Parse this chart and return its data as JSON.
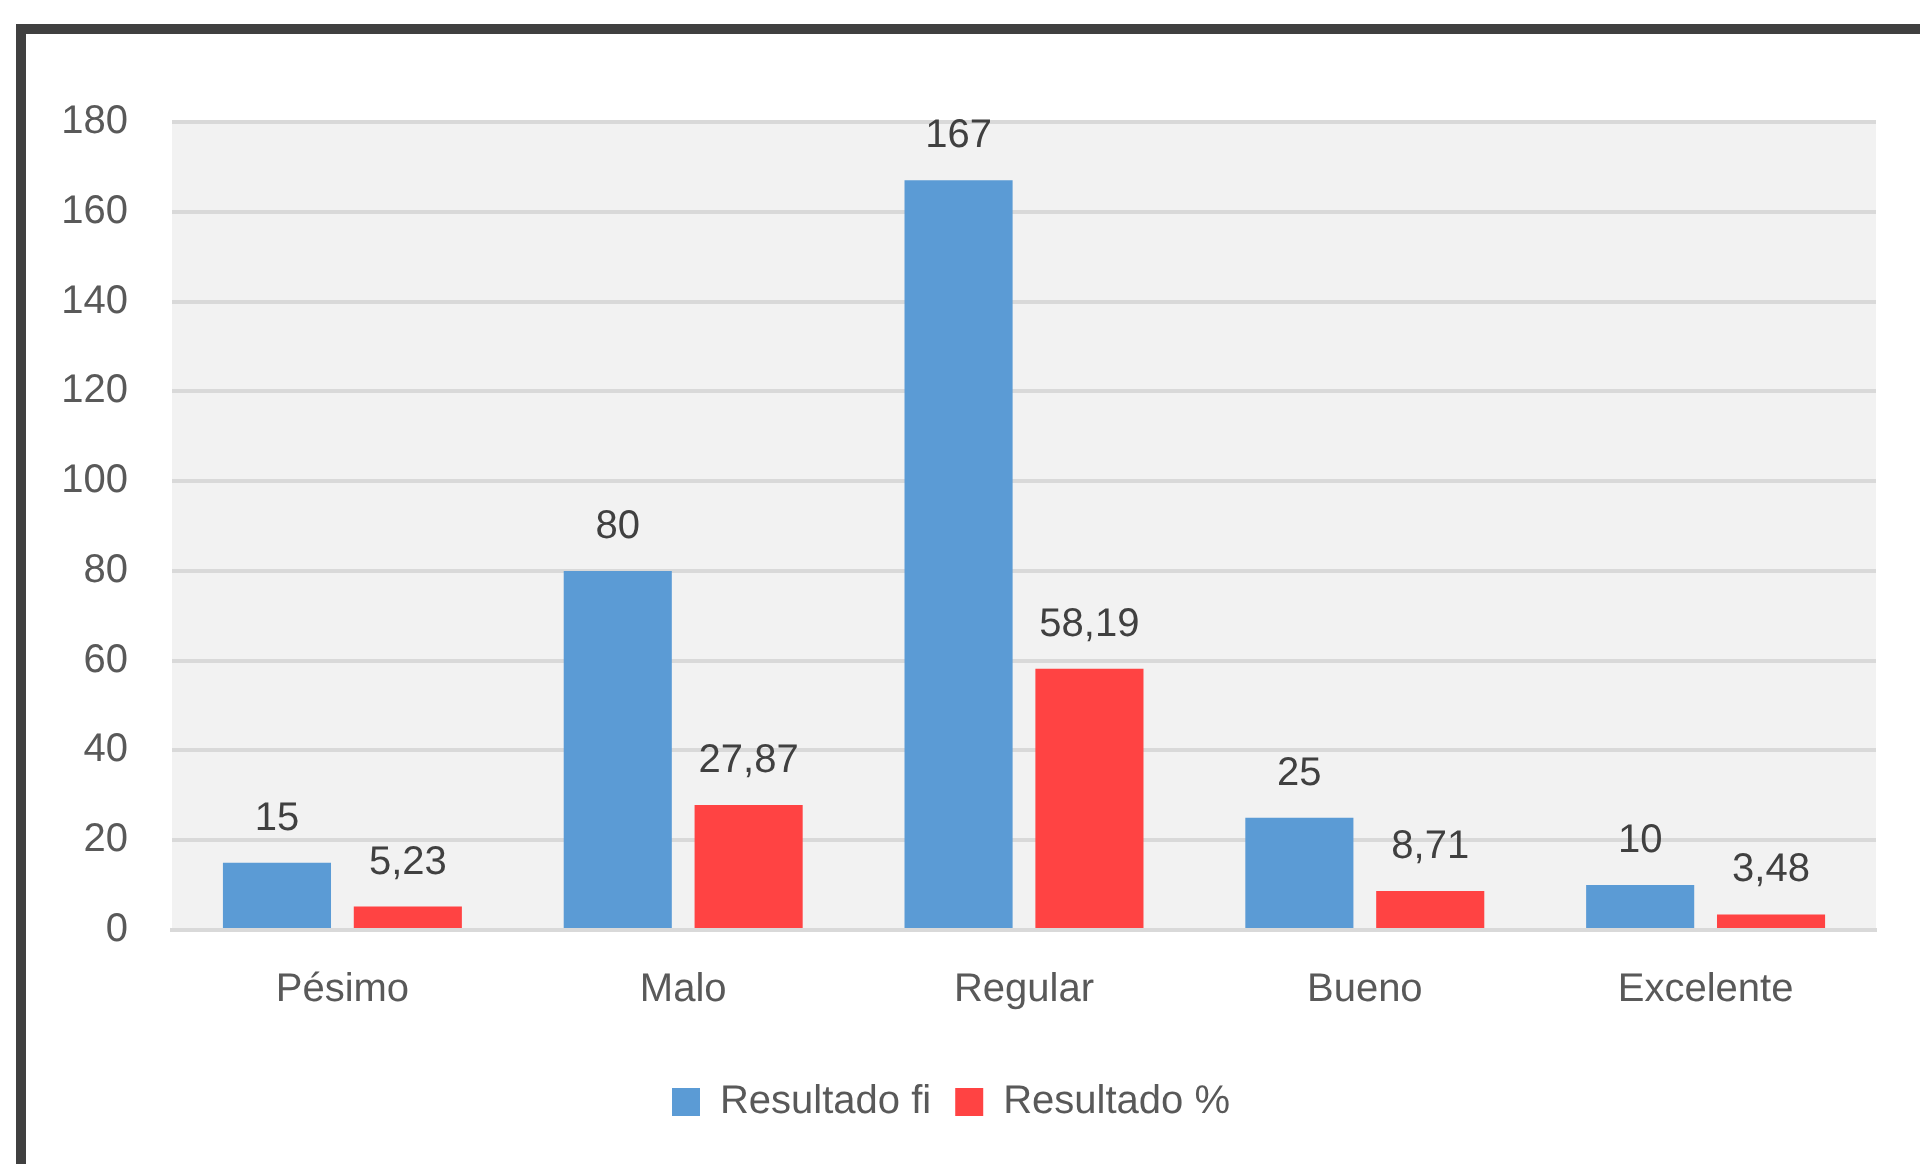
{
  "chart_data": {
    "type": "bar",
    "categories": [
      "Pésimo",
      "Malo",
      "Regular",
      "Bueno",
      "Excelente"
    ],
    "series": [
      {
        "name": "Resultado fi",
        "color": "#5b9bd5",
        "values": [
          15,
          80,
          167,
          25,
          10
        ],
        "value_labels": [
          "15",
          "80",
          "167",
          "25",
          "10"
        ]
      },
      {
        "name": "Resultado %",
        "color": "#ff4343",
        "values": [
          5.23,
          27.87,
          58.19,
          8.71,
          3.48
        ],
        "value_labels": [
          "5,23",
          "27,87",
          "58,19",
          "8,71",
          "3,48"
        ]
      }
    ],
    "ylim": [
      0,
      180
    ],
    "yticks": [
      0,
      20,
      40,
      60,
      80,
      100,
      120,
      140,
      160,
      180
    ],
    "grid": "y",
    "legend": "bottom"
  }
}
